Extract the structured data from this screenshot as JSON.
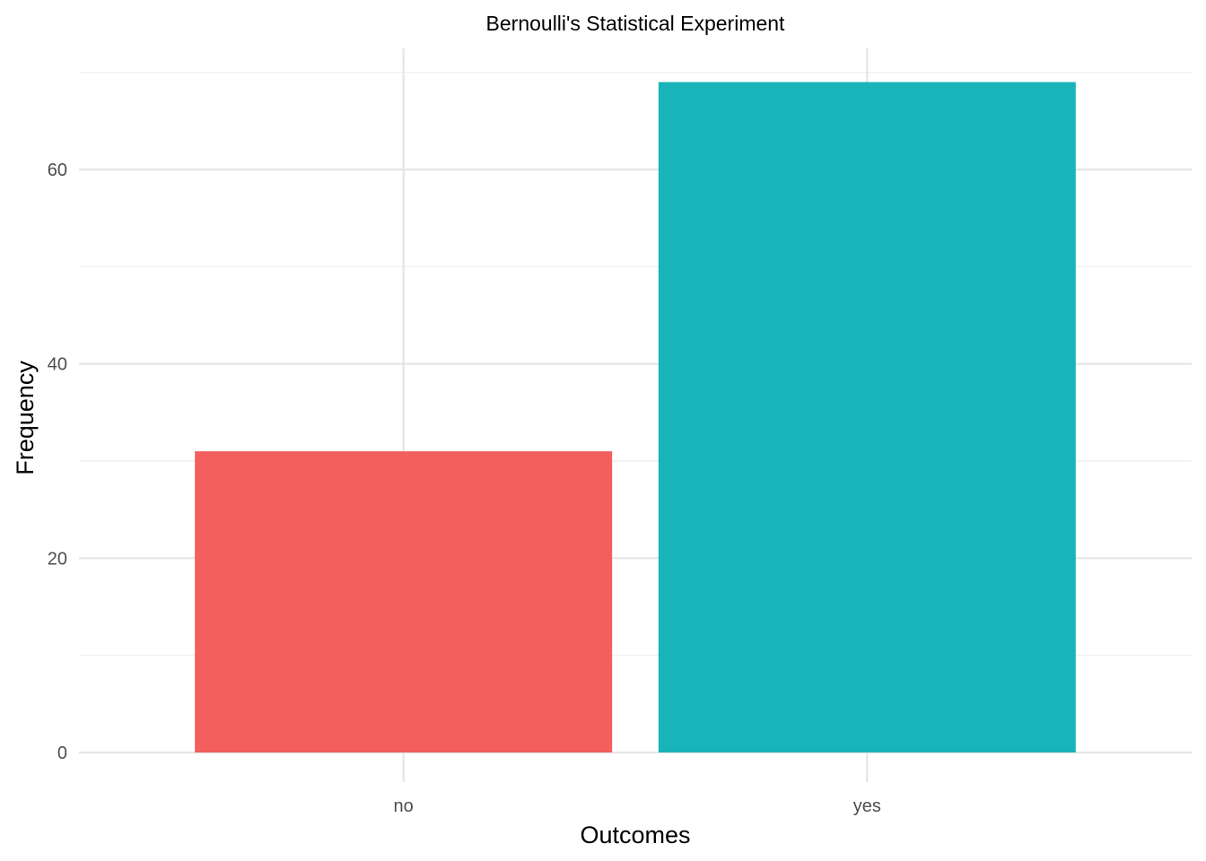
{
  "chart_data": {
    "type": "bar",
    "title": "Bernoulli's Statistical Experiment",
    "xlabel": "Outcomes",
    "ylabel": "Frequency",
    "categories": [
      "no",
      "yes"
    ],
    "values": [
      31,
      69
    ],
    "colors": [
      "#F35F5C",
      "#19B4B9"
    ],
    "ylim": [
      0,
      72.5
    ],
    "yticks": [
      0,
      20,
      40,
      60
    ],
    "yticks_minor": [
      10,
      30,
      50,
      70
    ],
    "grid": true,
    "legend": "none"
  }
}
